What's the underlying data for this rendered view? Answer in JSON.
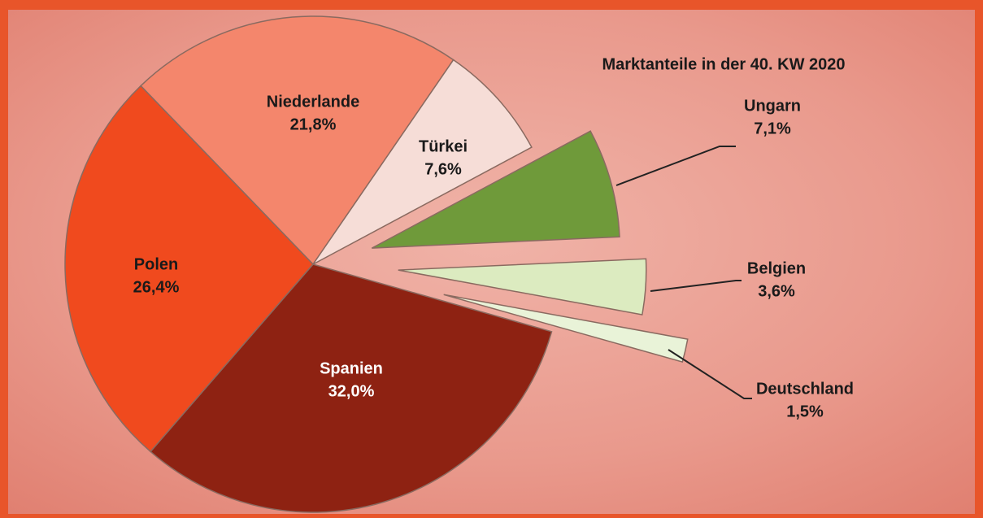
{
  "chart_data": {
    "type": "pie",
    "title": "Marktanteile in der 40. KW 2020",
    "categories": [
      "Niederlande",
      "Türkei",
      "Ungarn",
      "Belgien",
      "Deutschland",
      "Spanien",
      "Polen"
    ],
    "values": [
      21.8,
      7.6,
      7.1,
      3.6,
      1.5,
      32.0,
      26.4
    ],
    "value_labels": [
      "21,8%",
      "7,6%",
      "7,1%",
      "3,6%",
      "1,5%",
      "32,0%",
      "26,4%"
    ],
    "colors": [
      "#f4866c",
      "#f6ddd7",
      "#6f9a3a",
      "#dcebc0",
      "#e9f3d8",
      "#8e2212",
      "#f04a1e"
    ]
  }
}
